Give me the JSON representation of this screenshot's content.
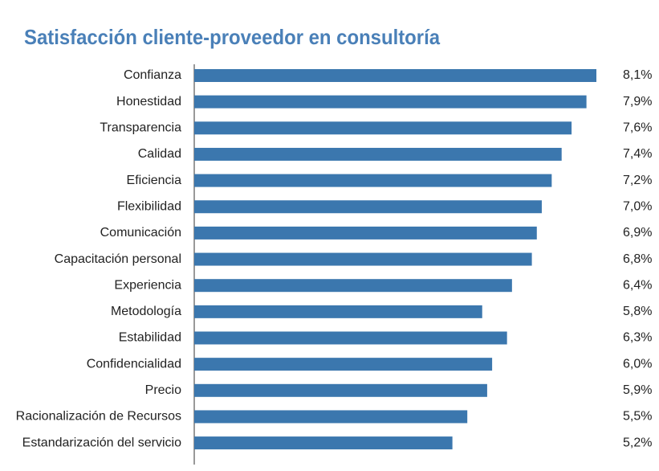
{
  "chart_data": {
    "type": "hbar",
    "title": "Satisfacción cliente-proveedor en consultoría",
    "categories": [
      "Confianza",
      "Honestidad",
      "Transparencia",
      "Calidad",
      "Eficiencia",
      "Flexibilidad",
      "Comunicación",
      "Capacitación personal",
      "Experiencia",
      "Metodología",
      "Estabilidad",
      "Confidencialidad",
      "Precio",
      "Racionalización de Recursos",
      "Estandarización del servicio"
    ],
    "values": [
      8.1,
      7.9,
      7.6,
      7.4,
      7.2,
      7.0,
      6.9,
      6.8,
      6.4,
      5.8,
      6.3,
      6.0,
      5.9,
      5.5,
      5.2
    ],
    "value_labels": [
      "8,1%",
      "7,9%",
      "7,6%",
      "7,4%",
      "7,2%",
      "7,0%",
      "6,9%",
      "6,8%",
      "6,4%",
      "5,8%",
      "6,3%",
      "6,0%",
      "5,9%",
      "5,5%",
      "5,2%"
    ],
    "color": "#3b77ae"
  }
}
